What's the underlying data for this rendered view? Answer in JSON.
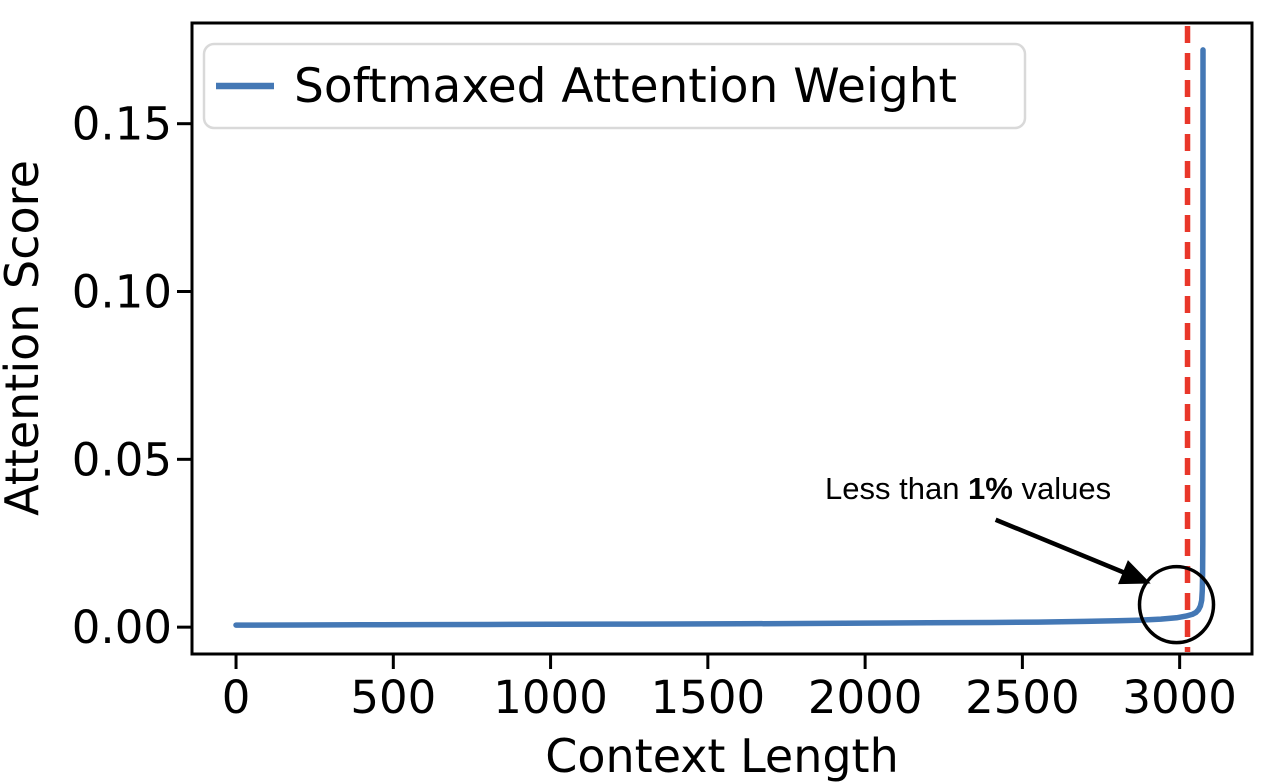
{
  "figure": {
    "background": "#ffffff"
  },
  "chart_data": {
    "type": "line",
    "title": "",
    "xlabel": "Context Length",
    "ylabel": "Attention Score",
    "xlim": [
      -140,
      3230
    ],
    "ylim": [
      -0.008,
      0.18
    ],
    "grid": false,
    "x_ticks": {
      "values": [
        0,
        500,
        1000,
        1500,
        2000,
        2500,
        3000
      ],
      "labels": [
        "0",
        "500",
        "1000",
        "1500",
        "2000",
        "2500",
        "3000"
      ]
    },
    "y_ticks": {
      "values": [
        0.0,
        0.05,
        0.1,
        0.15
      ],
      "labels": [
        "0.00",
        "0.05",
        "0.10",
        "0.15"
      ]
    },
    "legend": {
      "position": "upper left",
      "entries": [
        {
          "label": "Softmaxed Attention Weight",
          "color": "#4478b5"
        }
      ]
    },
    "series": [
      {
        "name": "Softmaxed Attention Weight",
        "color": "#4478b5",
        "points": [
          [
            0,
            0.0006
          ],
          [
            200,
            0.00065
          ],
          [
            400,
            0.0007
          ],
          [
            600,
            0.00075
          ],
          [
            800,
            0.0008
          ],
          [
            1000,
            0.00085
          ],
          [
            1200,
            0.0009
          ],
          [
            1400,
            0.00095
          ],
          [
            1600,
            0.001
          ],
          [
            1800,
            0.0011
          ],
          [
            2000,
            0.0012
          ],
          [
            2200,
            0.0013
          ],
          [
            2400,
            0.0014
          ],
          [
            2550,
            0.0015
          ],
          [
            2700,
            0.0017
          ],
          [
            2800,
            0.0019
          ],
          [
            2880,
            0.0021
          ],
          [
            2940,
            0.0024
          ],
          [
            2990,
            0.0028
          ],
          [
            3020,
            0.0033
          ],
          [
            3040,
            0.0038
          ],
          [
            3052,
            0.0044
          ],
          [
            3060,
            0.0052
          ],
          [
            3066,
            0.0063
          ],
          [
            3070,
            0.008
          ],
          [
            3072,
            0.011
          ],
          [
            3073,
            0.016
          ],
          [
            3073.5,
            0.025
          ],
          [
            3074,
            0.05
          ],
          [
            3074.2,
            0.1
          ],
          [
            3074.3,
            0.172
          ]
        ]
      }
    ],
    "vline": {
      "x": 3025,
      "color": "#e9372a",
      "style": "dashed"
    },
    "annotation": {
      "prefix": "Less than ",
      "bold": "1%",
      "suffix": " values",
      "circle_center": {
        "x": 2990,
        "y": 0.0067
      },
      "arrow_from": {
        "x": 2415,
        "y": 0.032
      },
      "arrow_tip": {
        "x": 2908,
        "y": 0.013
      }
    }
  }
}
